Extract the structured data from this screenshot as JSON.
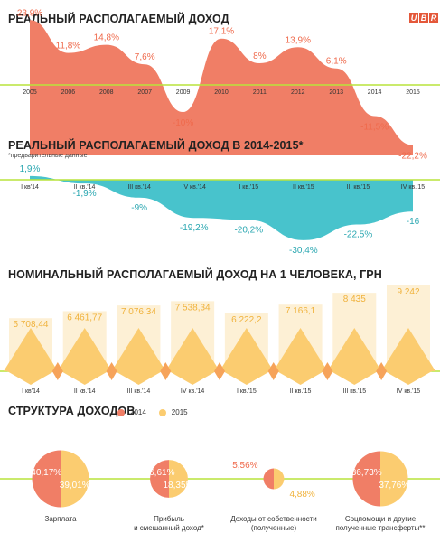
{
  "logo": {
    "letters": [
      "U",
      "B",
      "R"
    ]
  },
  "colors": {
    "salmon": "#f07e66",
    "teal": "#48c3cc",
    "yellow": "#fbcc70",
    "yellowLight": "#fdf0d5",
    "lime": "#b9e43b",
    "text": "#333333",
    "labelSalmon": "#ef6a4c",
    "labelTeal": "#2aa7b1",
    "labelYellow": "#f0b23c"
  },
  "chart_data": [
    {
      "type": "area",
      "title": "РЕАЛЬНЫЙ РАСПОЛАГАЕМЫЙ ДОХОД",
      "categories": [
        "2005",
        "2006",
        "2008",
        "2007",
        "2009",
        "2010",
        "2011",
        "2012",
        "2013",
        "2014",
        "2015"
      ],
      "values": [
        23.9,
        11.8,
        14.8,
        7.6,
        -10,
        17.1,
        8,
        13.9,
        6.1,
        -11.5,
        -22.2
      ],
      "labels": [
        "23,9%",
        "11,8%",
        "14,8%",
        "7,6%",
        "-10%",
        "17,1%",
        "8%",
        "13,9%",
        "6,1%",
        "-11,5%",
        "-22,2%"
      ]
    },
    {
      "type": "area",
      "title": "РЕАЛЬНЫЙ РАСПОЛАГАЕМЫЙ ДОХОД В 2014-2015*",
      "note": "*предварительные данные",
      "categories": [
        "I кв'14",
        "II кв.'14",
        "III кв.'14",
        "IV кв.'14",
        "I кв.'15",
        "II кв.'15",
        "III кв.'15",
        "IV кв.'15"
      ],
      "values": [
        1.9,
        -1.9,
        -9,
        -19.2,
        -20.2,
        -30.4,
        -22.5,
        -16
      ],
      "labels": [
        "1,9%",
        "-1,9%",
        "-9%",
        "-19,2%",
        "-20,2%",
        "-30,4%",
        "-22,5%",
        "-16"
      ]
    },
    {
      "type": "bar",
      "title": "НОМИНАЛЬНЫЙ РАСПОЛАГАЕМЫЙ ДОХОД НА 1 ЧЕЛОВЕКА, ГРН",
      "categories": [
        "I кв'14",
        "II кв.'14",
        "III кв.'14",
        "IV кв.'14",
        "I кв.'15",
        "II кв.'15",
        "III кв.'15",
        "IV кв.'15"
      ],
      "values": [
        5708.44,
        6461.77,
        7076.34,
        7538.34,
        6222.2,
        7166.1,
        8435,
        9242
      ],
      "labels": [
        "5 708,44",
        "6 461,77",
        "7 076,34",
        "7 538,34",
        "6 222,2",
        "7 166,1",
        "8 435",
        "9 242"
      ]
    },
    {
      "type": "pie",
      "title": "СТРУКТУРА ДОХОДОВ",
      "series": [
        {
          "name": "2014"
        },
        {
          "name": "2015"
        }
      ],
      "categories": [
        "Зарплата",
        "Прибыль и смешанный доход*",
        "Доходы от собственности (полученные)",
        "Соцпомощи и другие полученные трансферты**"
      ],
      "category_lines": [
        [
          "Зарплата"
        ],
        [
          "Прибыль",
          "и смешанный доход*"
        ],
        [
          "Доходы от собственности",
          "(полученные)"
        ],
        [
          "Соцпомощи и другие",
          "полученные трансферты**"
        ]
      ],
      "values_2014": [
        40.17,
        16.61,
        5.56,
        36.73
      ],
      "values_2015": [
        39.01,
        18.35,
        4.88,
        37.76
      ],
      "labels_2014": [
        "40,17%",
        "16,61%",
        "5,56%",
        "36,73%"
      ],
      "labels_2015": [
        "39,01%",
        "18,35%",
        "4,88%",
        "37,76%"
      ]
    }
  ]
}
